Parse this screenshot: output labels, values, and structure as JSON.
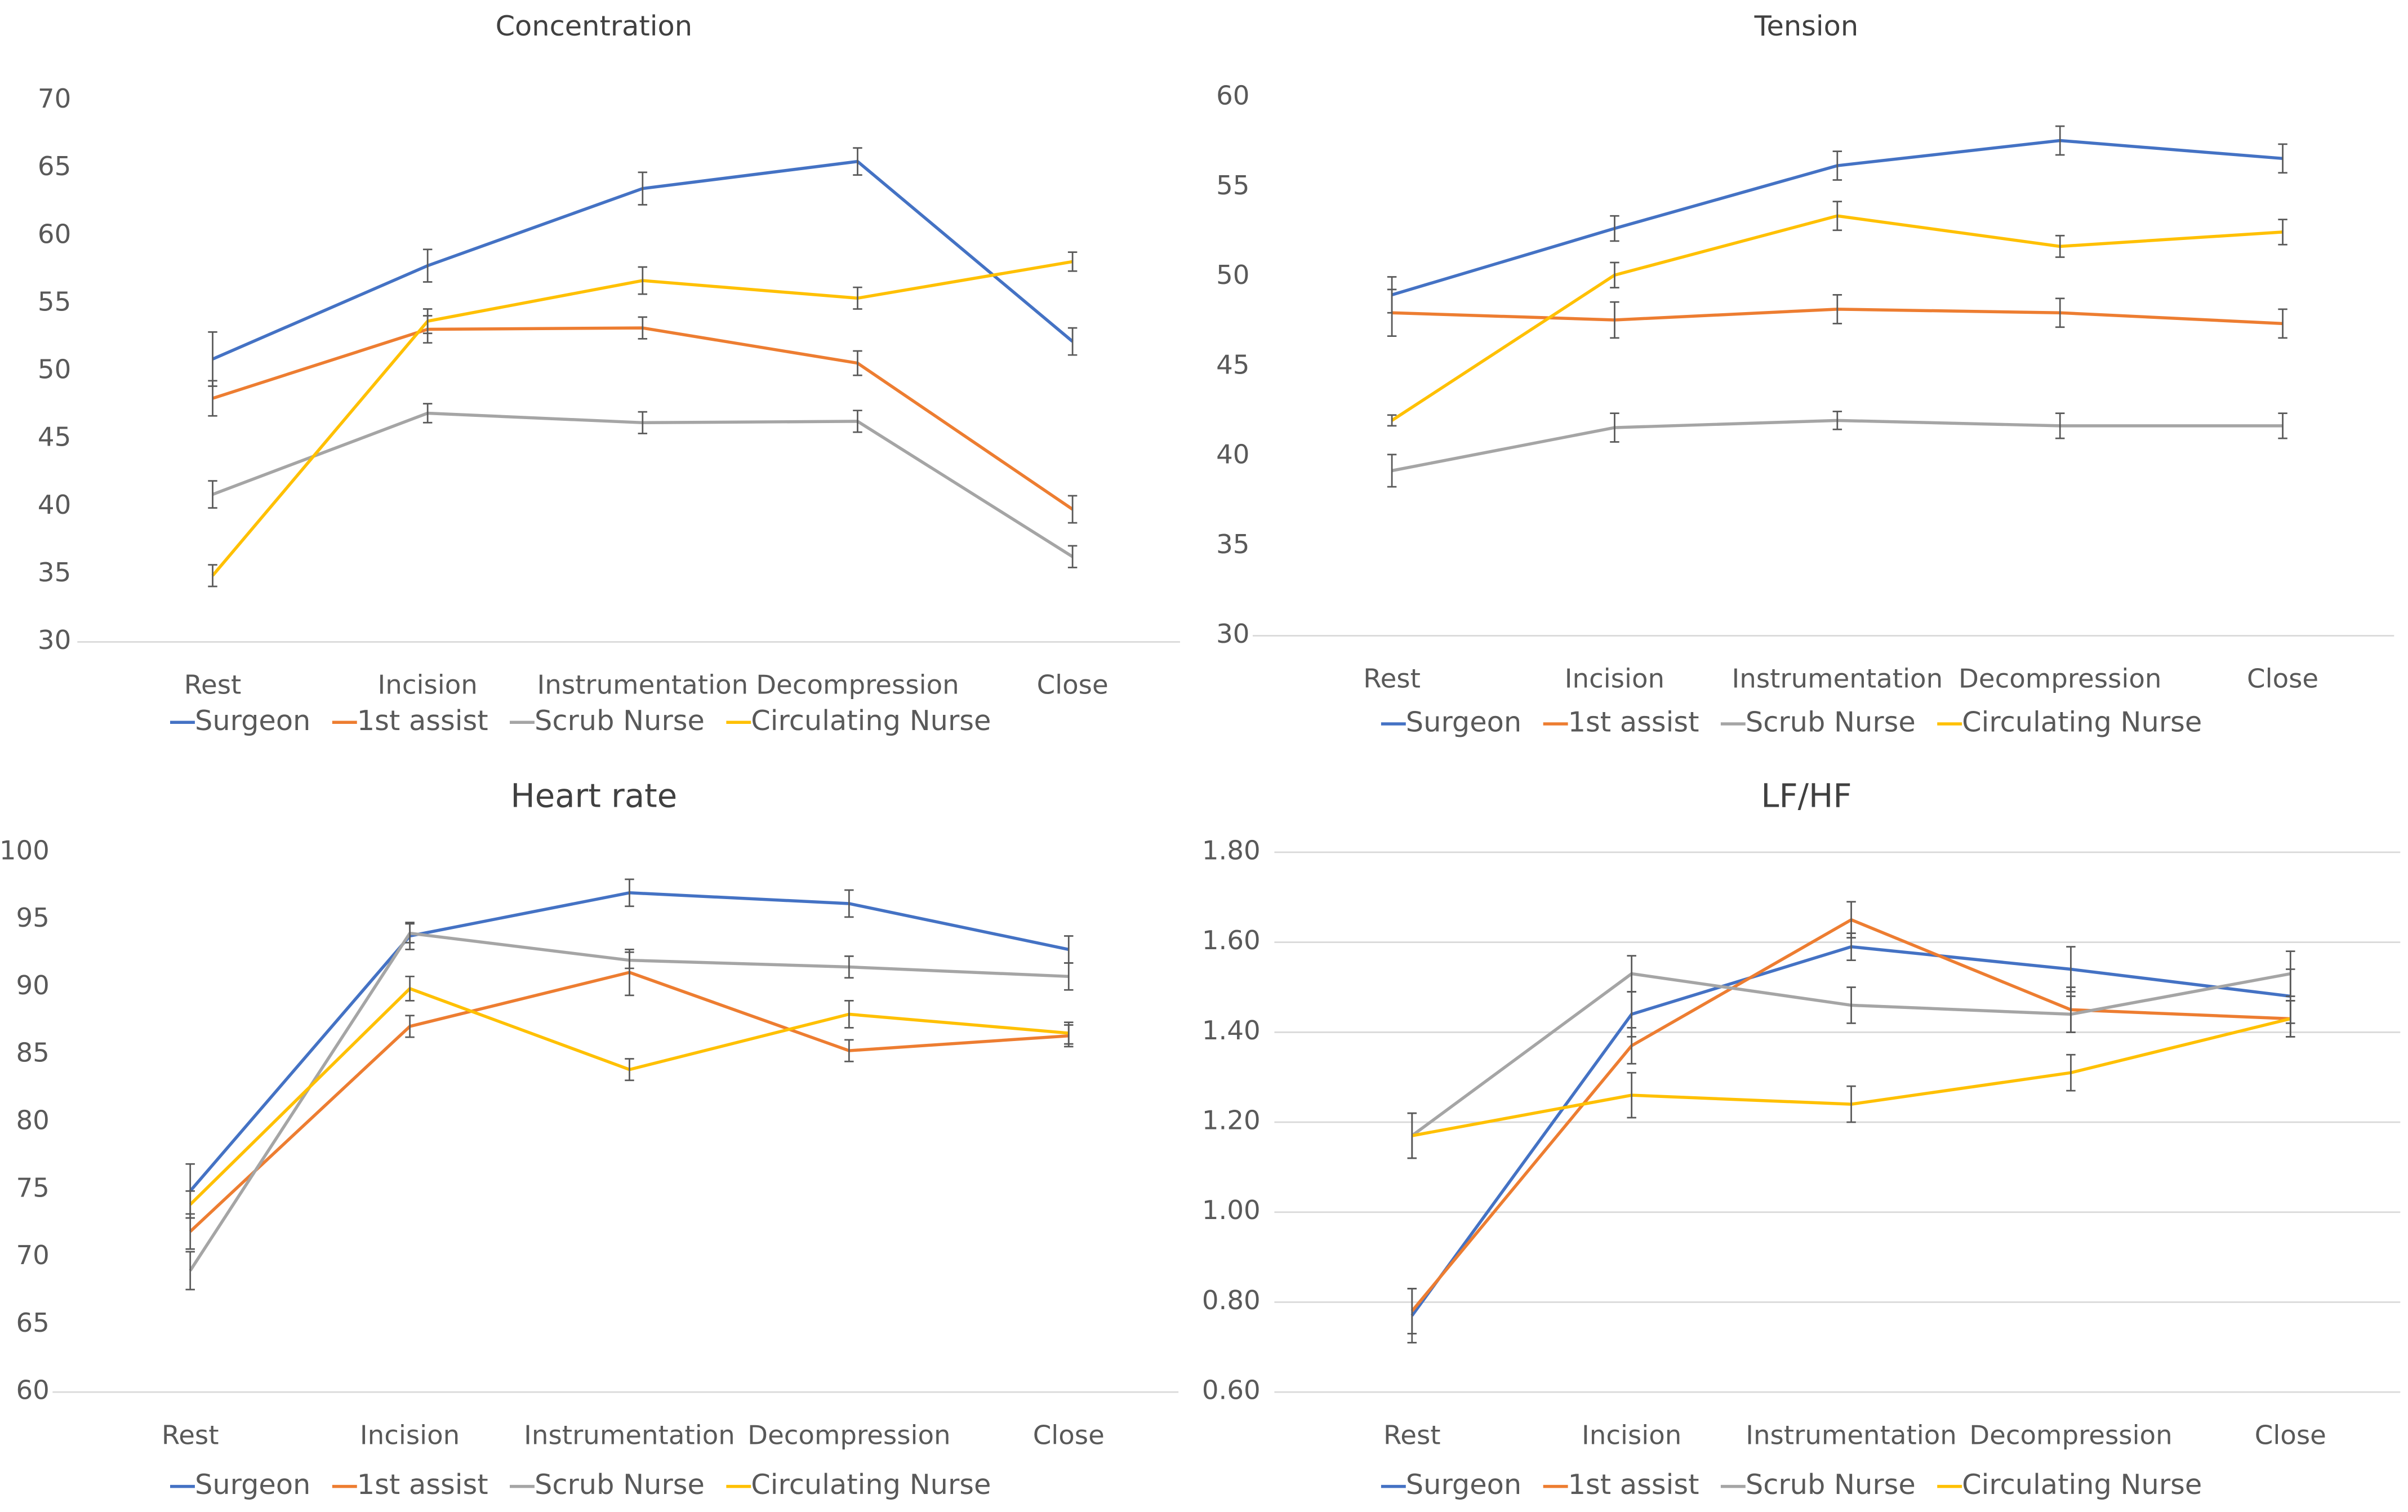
{
  "chart_data": [
    {
      "type": "line",
      "title": "Concentration",
      "categories": [
        "Rest",
        "Incision",
        "Instrumentation",
        "Decompression",
        "Close"
      ],
      "ylim": [
        30,
        70
      ],
      "yticks": [
        30,
        35,
        40,
        45,
        50,
        55,
        60,
        65,
        70
      ],
      "grid": false,
      "series": [
        {
          "name": "Surgeon",
          "color": "#4472c4",
          "values": [
            50.9,
            57.8,
            63.5,
            65.5,
            52.2
          ],
          "errors": [
            2,
            1.2,
            1.2,
            1,
            1
          ]
        },
        {
          "name": "1st assist",
          "color": "#ed7d31",
          "values": [
            48,
            53.1,
            53.2,
            50.6,
            39.8
          ],
          "errors": [
            1.3,
            1,
            0.8,
            0.9,
            1
          ]
        },
        {
          "name": "Scrub Nurse",
          "color": "#a5a5a5",
          "values": [
            40.9,
            46.9,
            46.2,
            46.3,
            36.3
          ],
          "errors": [
            1,
            0.7,
            0.8,
            0.8,
            0.8
          ]
        },
        {
          "name": "Circulating Nurse",
          "color": "#ffc000",
          "values": [
            34.9,
            53.7,
            56.7,
            55.4,
            58.1
          ],
          "errors": [
            0.8,
            0.9,
            1,
            0.8,
            0.7
          ]
        }
      ]
    },
    {
      "type": "line",
      "title": "Tension",
      "categories": [
        "Rest",
        "Incision",
        "Instrumentation",
        "Decompression",
        "Close"
      ],
      "ylim": [
        30,
        60
      ],
      "yticks": [
        30,
        35,
        40,
        45,
        50,
        55,
        60
      ],
      "grid": false,
      "series": [
        {
          "name": "Surgeon",
          "color": "#4472c4",
          "values": [
            49,
            52.7,
            56.2,
            57.6,
            56.6
          ],
          "errors": [
            1,
            0.7,
            0.8,
            0.8,
            0.8
          ]
        },
        {
          "name": "1st assist",
          "color": "#ed7d31",
          "values": [
            48,
            47.6,
            48.2,
            48,
            47.4
          ],
          "errors": [
            1.3,
            1,
            0.8,
            0.8,
            0.8
          ]
        },
        {
          "name": "Scrub Nurse",
          "color": "#a5a5a5",
          "values": [
            39.2,
            41.6,
            42,
            41.7,
            41.7
          ],
          "errors": [
            0.9,
            0.8,
            0.5,
            0.7,
            0.7
          ]
        },
        {
          "name": "Circulating Nurse",
          "color": "#ffc000",
          "values": [
            42,
            50.1,
            53.4,
            51.7,
            52.5
          ],
          "errors": [
            0.3,
            0.7,
            0.8,
            0.6,
            0.7
          ]
        }
      ]
    },
    {
      "type": "line",
      "title": "Heart rate",
      "categories": [
        "Rest",
        "Incision",
        "Instrumentation",
        "Decompression",
        "Close"
      ],
      "ylim": [
        60,
        100
      ],
      "yticks": [
        60,
        65,
        70,
        75,
        80,
        85,
        90,
        95,
        100
      ],
      "grid": false,
      "series": [
        {
          "name": "Surgeon",
          "color": "#4472c4",
          "values": [
            74.9,
            93.8,
            97,
            96.2,
            92.8
          ],
          "errors": [
            2,
            1,
            1,
            1,
            1
          ]
        },
        {
          "name": "1st assist",
          "color": "#ed7d31",
          "values": [
            71.9,
            87.1,
            91.1,
            85.3,
            86.4
          ],
          "errors": [
            1.3,
            0.8,
            1.7,
            0.8,
            0.8
          ]
        },
        {
          "name": "Scrub Nurse",
          "color": "#a5a5a5",
          "values": [
            69,
            94,
            92,
            91.5,
            90.8
          ],
          "errors": [
            1.4,
            0.7,
            0.6,
            0.8,
            1
          ]
        },
        {
          "name": "Circulating Nurse",
          "color": "#ffc000",
          "values": [
            73.9,
            89.9,
            83.9,
            88,
            86.6
          ],
          "errors": [
            1,
            0.9,
            0.8,
            1,
            0.8
          ]
        }
      ]
    },
    {
      "type": "line",
      "title": "LF/HF",
      "categories": [
        "Rest",
        "Incision",
        "Instrumentation",
        "Decompression",
        "Close"
      ],
      "ylim": [
        0.6,
        1.8
      ],
      "yticks": [
        {
          "value": 0.6,
          "label": "0.60"
        },
        {
          "value": 0.8,
          "label": "0.80"
        },
        {
          "value": 1,
          "label": "1.00"
        },
        {
          "value": 1.2,
          "label": "1.20"
        },
        {
          "value": 1.4,
          "label": "1.40"
        },
        {
          "value": 1.6,
          "label": "1.60"
        },
        {
          "value": 1.8,
          "label": "1.80"
        }
      ],
      "grid": true,
      "series": [
        {
          "name": "Surgeon",
          "color": "#4472c4",
          "values": [
            0.77,
            1.44,
            1.59,
            1.54,
            1.48
          ],
          "errors": [
            0.06,
            0.05,
            0.03,
            0.05,
            0.06
          ]
        },
        {
          "name": "1st assist",
          "color": "#ed7d31",
          "values": [
            0.78,
            1.37,
            1.65,
            1.45,
            1.43
          ],
          "errors": [
            0.05,
            0.04,
            0.04,
            0.05,
            0.04
          ]
        },
        {
          "name": "Scrub Nurse",
          "color": "#a5a5a5",
          "values": [
            1.17,
            1.53,
            1.46,
            1.44,
            1.53
          ],
          "errors": [
            0.05,
            0.04,
            0.04,
            0.04,
            0.05
          ]
        },
        {
          "name": "Circulating Nurse",
          "color": "#ffc000",
          "values": [
            1.17,
            1.26,
            1.24,
            1.31,
            1.43
          ],
          "errors": [
            0.05,
            0.05,
            0.04,
            0.04,
            0.04
          ]
        }
      ]
    }
  ]
}
